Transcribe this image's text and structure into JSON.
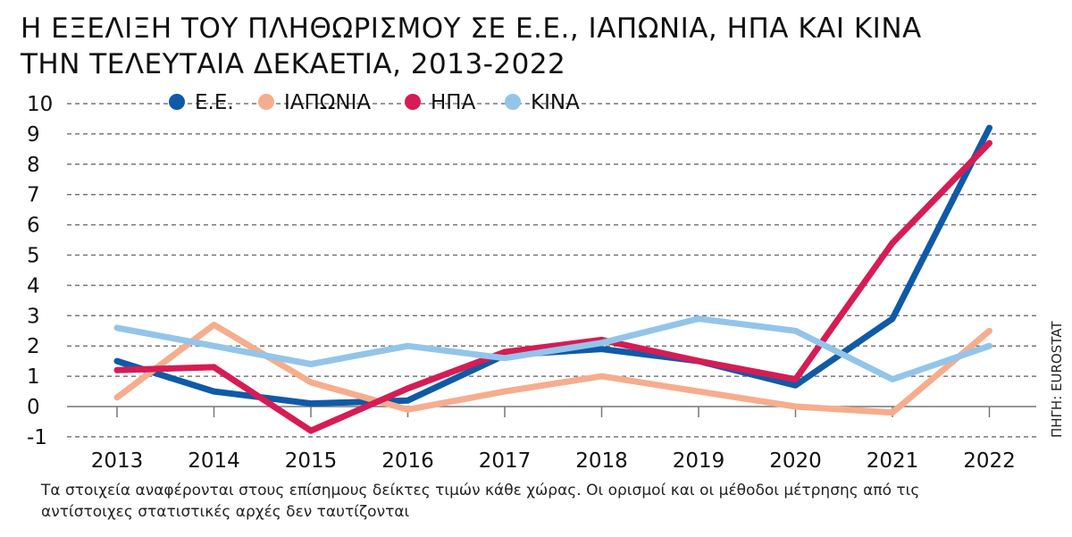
{
  "chart_data": {
    "type": "line",
    "title": "Η ΕΞΕΛΙΞΗ ΤΟΥ ΠΛΗΘΩΡΙΣΜΟΥ ΣΕ Ε.Ε., ΙΑΠΩΝΙΑ, ΗΠΑ ΚΑΙ ΚΙΝΑ",
    "subtitle": "ΤΗΝ ΤΕΛΕΥΤΑΙΑ ΔΕΚΑΕΤΙΑ, 2013-2022",
    "xlabel": "",
    "ylabel": "",
    "categories": [
      "2013",
      "2014",
      "2015",
      "2016",
      "2017",
      "2018",
      "2019",
      "2020",
      "2021",
      "2022"
    ],
    "y_ticks": [
      "10",
      "9",
      "8",
      "7",
      "6",
      "5",
      "4",
      "3",
      "2",
      "1",
      "0",
      "-1"
    ],
    "ylim": [
      -1,
      10
    ],
    "grid": true,
    "legend": "top",
    "series": [
      {
        "name": "Ε.Ε.",
        "color": "#0f5aa7",
        "values": [
          1.5,
          0.5,
          0.1,
          0.2,
          1.7,
          1.9,
          1.5,
          0.7,
          2.9,
          9.2
        ]
      },
      {
        "name": "ΙΑΠΩΝΙΑ",
        "color": "#f6ad8e",
        "values": [
          0.3,
          2.7,
          0.8,
          -0.1,
          0.5,
          1.0,
          0.5,
          0.0,
          -0.2,
          2.5
        ]
      },
      {
        "name": "ΗΠΑ",
        "color": "#d61c54",
        "values": [
          1.2,
          1.3,
          -0.8,
          0.6,
          1.8,
          2.2,
          1.5,
          0.9,
          5.4,
          8.7
        ]
      },
      {
        "name": "ΚΙΝΑ",
        "color": "#93c5ea",
        "values": [
          2.6,
          2.0,
          1.4,
          2.0,
          1.6,
          2.1,
          2.9,
          2.5,
          0.9,
          2.0
        ]
      }
    ],
    "source": "ΠΗΓΗ: EUROSTAT",
    "note": [
      "Τα στοιχεία αναφέρονται στους επίσημους δείκτες τιμών κάθε χώρας. Οι ορισμοί και οι μέθοδοι μέτρησης από τις",
      "αντίστοιχες στατιστικές αρχές δεν ταυτίζονται"
    ]
  }
}
